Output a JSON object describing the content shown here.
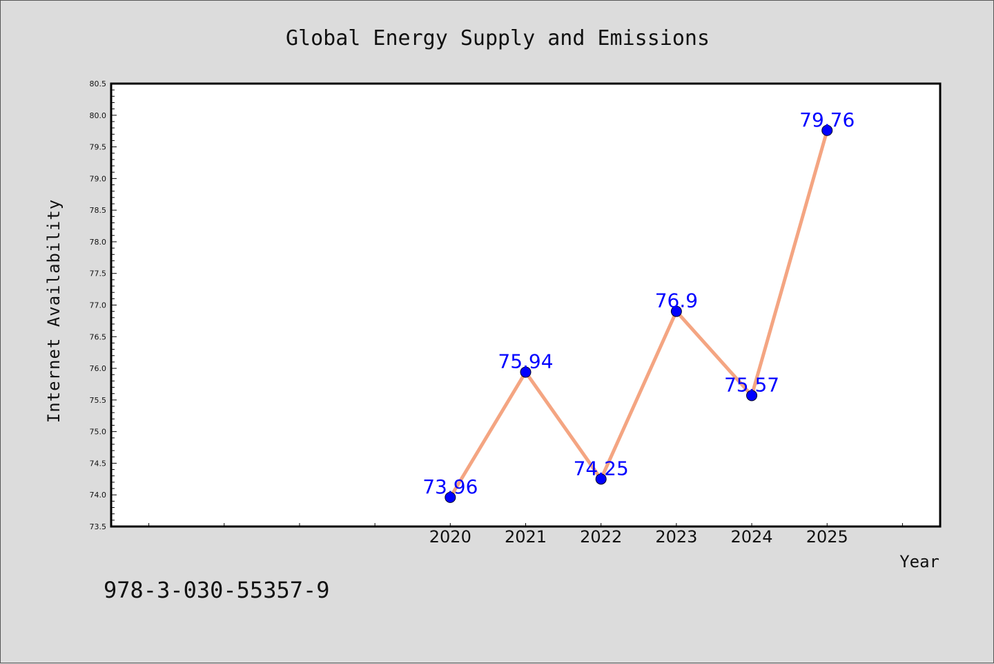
{
  "chart_data": {
    "type": "line",
    "title": "Global Energy Supply and Emissions",
    "xlabel": "Year",
    "ylabel": "Internet Availability",
    "x": [
      2020,
      2021,
      2022,
      2023,
      2024,
      2025
    ],
    "series": [
      {
        "values": [
          73.96,
          75.94,
          74.25,
          76.9,
          75.57,
          79.76
        ]
      }
    ],
    "data_labels": [
      "73.96",
      "75.94",
      "74.25",
      "76.9",
      "75.57",
      "79.76"
    ],
    "ylim": [
      73.5,
      80.5
    ],
    "yticks": [
      73.5,
      74.0,
      74.5,
      75.0,
      75.5,
      76.0,
      76.5,
      77.0,
      77.5,
      78.0,
      78.5,
      79.0,
      79.5,
      80.0,
      80.5
    ],
    "ytick_labels": [
      "73.5",
      "74.0",
      "74.5",
      "75.0",
      "75.5",
      "76.0",
      "76.5",
      "77.0",
      "77.5",
      "78.0",
      "78.5",
      "79.0",
      "79.5",
      "80.0",
      "80.5"
    ],
    "xlim": [
      2015.5,
      2026.5
    ],
    "xtick_labels": [
      "2020",
      "2021",
      "2022",
      "2023",
      "2024",
      "2025"
    ],
    "grid": false,
    "line_color": "#f4a582",
    "marker_color": "#0000ff",
    "label_color": "#0000ff"
  },
  "annotation": {
    "isbn": "978-3-030-55357-9"
  }
}
